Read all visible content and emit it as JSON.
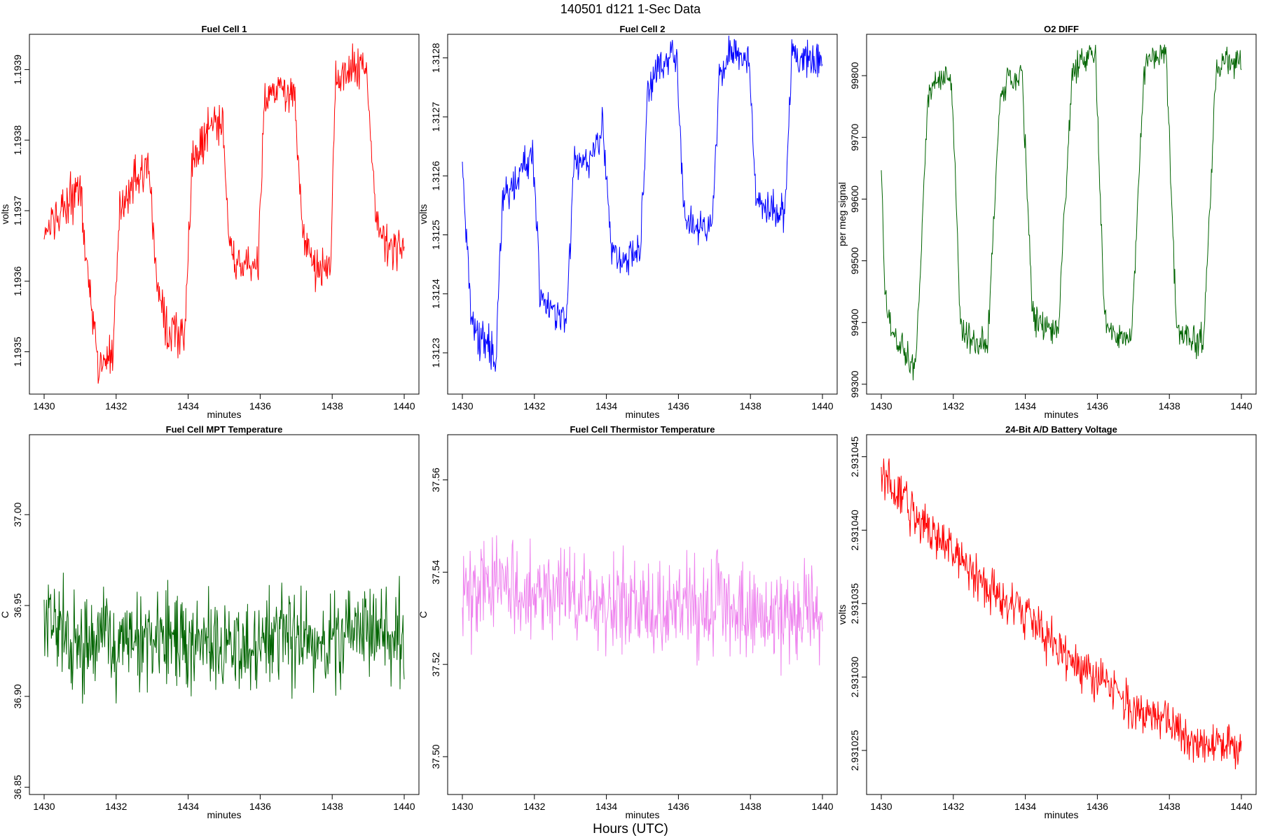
{
  "figure": {
    "title": "140501   d121   1-Sec Data",
    "xlabel": "Hours (UTC)"
  },
  "chart_data": [
    {
      "type": "line",
      "title": "Fuel Cell 1",
      "xlabel": "minutes",
      "ylabel": "volts",
      "color": "#ff0000",
      "xlim": [
        1430,
        1440
      ],
      "ylim": [
        1.19344,
        1.19395
      ],
      "xticks": [
        "1430",
        "1432",
        "1434",
        "1436",
        "1438",
        "1440"
      ],
      "yticks": [
        "1.1935",
        "1.1936",
        "1.1937",
        "1.1938",
        "1.1939"
      ],
      "series": [
        {
          "name": "Fuel Cell 1",
          "x": [
            1430.0,
            1430.5,
            1431.0,
            1431.25,
            1431.5,
            1431.9,
            1432.1,
            1432.5,
            1432.9,
            1433.15,
            1433.4,
            1433.9,
            1434.1,
            1434.5,
            1434.95,
            1435.15,
            1435.5,
            1435.95,
            1436.1,
            1436.5,
            1436.95,
            1437.15,
            1437.5,
            1437.95,
            1438.1,
            1438.5,
            1438.95,
            1439.2,
            1439.5,
            1440.0
          ],
          "y": [
            1.19366,
            1.1937,
            1.19373,
            1.1936,
            1.19348,
            1.1935,
            1.1937,
            1.19374,
            1.19376,
            1.1936,
            1.19353,
            1.19352,
            1.19376,
            1.19381,
            1.19383,
            1.19365,
            1.19362,
            1.19363,
            1.19385,
            1.19387,
            1.19387,
            1.19368,
            1.19362,
            1.19362,
            1.19388,
            1.1939,
            1.1939,
            1.1937,
            1.19365,
            1.19365
          ]
        }
      ]
    },
    {
      "type": "line",
      "title": "Fuel Cell 2",
      "xlabel": "minutes",
      "ylabel": "volts",
      "color": "#0000ff",
      "xlim": [
        1430,
        1440
      ],
      "ylim": [
        1.31223,
        1.31284
      ],
      "xticks": [
        "1430",
        "1432",
        "1434",
        "1436",
        "1438",
        "1440"
      ],
      "yticks": [
        "1.3123",
        "1.3124",
        "1.3125",
        "1.3126",
        "1.3127",
        "1.3128"
      ],
      "series": [
        {
          "name": "Fuel Cell 2",
          "x": [
            1430.0,
            1430.25,
            1430.5,
            1430.95,
            1431.1,
            1431.5,
            1431.95,
            1432.15,
            1432.5,
            1432.9,
            1433.1,
            1433.5,
            1433.9,
            1434.15,
            1434.5,
            1434.95,
            1435.15,
            1435.5,
            1435.95,
            1436.15,
            1436.5,
            1436.95,
            1437.15,
            1437.5,
            1437.95,
            1438.15,
            1438.5,
            1438.95,
            1439.15,
            1440.0
          ],
          "y": [
            1.31261,
            1.31235,
            1.31232,
            1.3123,
            1.31255,
            1.3126,
            1.31264,
            1.3124,
            1.31237,
            1.31236,
            1.31263,
            1.31262,
            1.31268,
            1.31247,
            1.31245,
            1.31248,
            1.31275,
            1.31279,
            1.3128,
            1.31254,
            1.31251,
            1.31252,
            1.31278,
            1.3128,
            1.3128,
            1.31257,
            1.31254,
            1.31254,
            1.3128,
            1.3128
          ]
        }
      ]
    },
    {
      "type": "line",
      "title": "O2 DIFF",
      "xlabel": "minutes",
      "ylabel": "per meg signal",
      "color": "#006400",
      "xlim": [
        1430,
        1440
      ],
      "ylim": [
        99284,
        99867
      ],
      "xticks": [
        "1430",
        "1432",
        "1434",
        "1436",
        "1438",
        "1440"
      ],
      "yticks": [
        "99300",
        "99400",
        "99500",
        "99600",
        "99700",
        "99800"
      ],
      "series": [
        {
          "name": "O2 DIFF",
          "x": [
            1430.0,
            1430.1,
            1430.25,
            1430.5,
            1430.95,
            1431.3,
            1431.5,
            1431.95,
            1432.2,
            1432.5,
            1432.95,
            1433.3,
            1433.5,
            1433.9,
            1434.2,
            1434.5,
            1434.9,
            1435.3,
            1435.5,
            1435.95,
            1436.2,
            1436.5,
            1436.95,
            1437.3,
            1437.5,
            1437.9,
            1438.2,
            1438.5,
            1438.95,
            1439.3,
            1439.5,
            1440.0
          ],
          "y": [
            99650,
            99450,
            99390,
            99360,
            99330,
            99760,
            99795,
            99800,
            99400,
            99370,
            99360,
            99770,
            99790,
            99810,
            99410,
            99390,
            99380,
            99800,
            99820,
            99830,
            99400,
            99380,
            99380,
            99810,
            99830,
            99845,
            99390,
            99375,
            99370,
            99810,
            99815,
            99825
          ]
        }
      ]
    },
    {
      "type": "line",
      "title": "Fuel Cell MPT Temperature",
      "xlabel": "minutes",
      "ylabel": "C",
      "color": "#006400",
      "xlim": [
        1430,
        1440
      ],
      "ylim": [
        36.846,
        37.044
      ],
      "xticks": [
        "1430",
        "1432",
        "1434",
        "1436",
        "1438",
        "1440"
      ],
      "yticks": [
        "36.85",
        "36.90",
        "36.95",
        "37.00"
      ],
      "series": [
        {
          "name": "Fuel Cell MPT Temperature",
          "x": [
            1430.0,
            1431.0,
            1431.9,
            1432.5,
            1433.0,
            1433.6,
            1434.0,
            1435.0,
            1435.5,
            1436.0,
            1436.9,
            1437.5,
            1438.0,
            1439.0,
            1440.0
          ],
          "y": [
            36.945,
            36.93,
            36.93,
            36.928,
            36.93,
            36.932,
            36.928,
            36.928,
            36.925,
            36.928,
            36.935,
            36.93,
            36.93,
            36.935,
            36.935
          ]
        }
      ]
    },
    {
      "type": "line",
      "title": "Fuel Cell Thermistor Temperature",
      "xlabel": "minutes",
      "ylabel": "C",
      "color": "#ee82ee",
      "xlim": [
        1430,
        1440
      ],
      "ylim": [
        37.4918,
        37.5698
      ],
      "xticks": [
        "1430",
        "1432",
        "1434",
        "1436",
        "1438",
        "1440"
      ],
      "yticks": [
        "37.50",
        "37.52",
        "37.54",
        "37.56"
      ],
      "series": [
        {
          "name": "Fuel Cell Thermistor Temperature",
          "x": [
            1430.0,
            1431.0,
            1432.0,
            1433.0,
            1434.0,
            1435.0,
            1436.0,
            1437.0,
            1438.0,
            1439.0,
            1440.0
          ],
          "y": [
            37.535,
            37.536,
            37.534,
            37.536,
            37.533,
            37.532,
            37.532,
            37.533,
            37.531,
            37.531,
            37.53
          ]
        }
      ]
    },
    {
      "type": "line",
      "title": "24-Bit A/D Battery Voltage",
      "xlabel": "minutes",
      "ylabel": "volts",
      "color": "#ff0000",
      "xlim": [
        1430,
        1440
      ],
      "ylim": [
        2.931022,
        2.9310465
      ],
      "xticks": [
        "1430",
        "1432",
        "1434",
        "1436",
        "1438",
        "1440"
      ],
      "yticks": [
        "2.931025",
        "2.931030",
        "2.931035",
        "2.931040",
        "2.931045"
      ],
      "series": [
        {
          "name": "24-Bit A/D Battery Voltage",
          "x": [
            1430.0,
            1430.5,
            1431.0,
            1431.5,
            1432.0,
            1432.5,
            1433.0,
            1433.5,
            1434.0,
            1434.5,
            1435.0,
            1435.5,
            1436.0,
            1436.5,
            1437.0,
            1437.5,
            1438.0,
            1438.5,
            1439.0,
            1439.5,
            1440.0
          ],
          "y": [
            2.931044,
            2.9310425,
            2.931041,
            2.9310395,
            2.9310385,
            2.931037,
            2.931036,
            2.931035,
            2.9310345,
            2.931033,
            2.9310315,
            2.9310305,
            2.93103,
            2.931029,
            2.931028,
            2.9310275,
            2.931027,
            2.931026,
            2.9310255,
            2.9310255,
            2.931025
          ]
        }
      ]
    }
  ]
}
